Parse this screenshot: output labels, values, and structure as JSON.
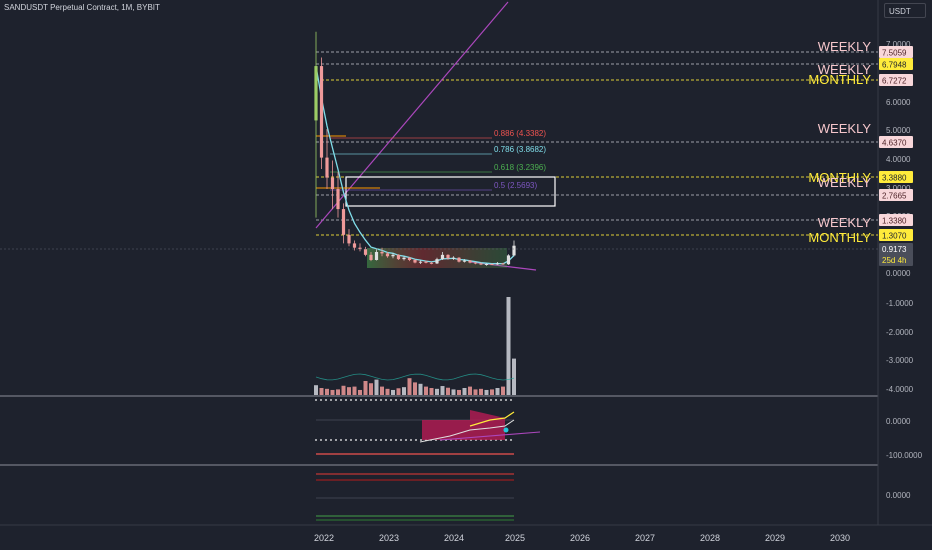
{
  "header": {
    "symbol_title": "SANDUSDT Perpetual Contract, 1M, BYBIT",
    "currency_button": "USDT"
  },
  "colors": {
    "background": "#1e222d",
    "weekly_text": "#f5c6cb",
    "monthly_text": "#ffeb3b",
    "ema_line": "#80deea",
    "trendline": "#ab47bc",
    "bull": "#26a69a",
    "bear": "#ef5350",
    "volume_up": "#d1d4dc",
    "volume_down": "#ef9a9a"
  },
  "chart_data": {
    "type": "candlestick",
    "x_axis_labels": [
      "2022",
      "2023",
      "2024",
      "2025",
      "2026",
      "2027",
      "2028",
      "2029",
      "2030"
    ],
    "price_axis_labels": [
      "7.0000",
      "6.0000",
      "5.0000",
      "4.0000",
      "3.0000",
      "2.0000",
      "0.0000",
      "-1.0000",
      "-2.0000",
      "-3.0000",
      "-4.0000"
    ],
    "pane2_axis_labels": [
      "0.0000",
      "-100.0000"
    ],
    "pane3_axis_labels": [
      "0.0000"
    ],
    "levels": [
      {
        "value": 7.5059,
        "label": "WEEKLY",
        "label_color": "#f5c6cb",
        "tag_bg": "#f8d7da",
        "tag_fg": "#4a1f24",
        "line_color": "#b2b5be"
      },
      {
        "value": 6.7948,
        "label": "WEEKLY",
        "label_color": "#f5c6cb",
        "tag_bg": "#ffeb3b",
        "tag_fg": "#1e222d",
        "line_color": "#b2b5be"
      },
      {
        "value": 6.7272,
        "label": "MONTHLY",
        "label_color": "#ffeb3b",
        "tag_bg": "#f8d7da",
        "tag_fg": "#4a1f24",
        "line_color": "#ffeb3b"
      },
      {
        "value": 4.637,
        "label": "WEEKLY",
        "label_color": "#f5c6cb",
        "tag_bg": "#f8d7da",
        "tag_fg": "#4a1f24",
        "line_color": "#b2b5be"
      },
      {
        "value": 3.388,
        "label": "MONTHLY",
        "label_color": "#ffeb3b",
        "tag_bg": "#ffeb3b",
        "tag_fg": "#1e222d",
        "line_color": "#ffeb3b"
      },
      {
        "value": 2.7665,
        "label": "WEEKLY",
        "label_color": "#f5c6cb",
        "tag_bg": "#f8d7da",
        "tag_fg": "#4a1f24",
        "line_color": "#b2b5be"
      },
      {
        "value": 1.338,
        "label": "WEEKLY",
        "label_color": "#f5c6cb",
        "tag_bg": "#f8d7da",
        "tag_fg": "#4a1f24",
        "line_color": "#b2b5be"
      },
      {
        "value": 1.307,
        "label": "MONTHLY",
        "label_color": "#ffeb3b",
        "tag_bg": "#ffeb3b",
        "tag_fg": "#1e222d",
        "line_color": "#ffeb3b"
      }
    ],
    "current_price": {
      "value": 0.9173,
      "countdown": "25d 4h"
    },
    "fib_levels": [
      {
        "text": "0.886 (4.3382)",
        "value": 4.3382,
        "color": "#ef5350"
      },
      {
        "text": "0.786 (3.8682)",
        "value": 3.8682,
        "color": "#80deea"
      },
      {
        "text": "0.618 (3.2396)",
        "value": 3.2396,
        "color": "#4caf50"
      },
      {
        "text": "0.5 (2.5693)",
        "value": 2.5693,
        "color": "#7e57c2"
      }
    ],
    "candles": [
      {
        "o": 5.3,
        "h": 8.4,
        "l": 1.9,
        "c": 7.2
      },
      {
        "o": 7.2,
        "h": 7.5,
        "l": 3.6,
        "c": 4.0
      },
      {
        "o": 4.0,
        "h": 5.0,
        "l": 2.9,
        "c": 3.3
      },
      {
        "o": 3.3,
        "h": 3.9,
        "l": 2.2,
        "c": 2.9
      },
      {
        "o": 2.9,
        "h": 3.5,
        "l": 1.9,
        "c": 2.2
      },
      {
        "o": 2.2,
        "h": 2.4,
        "l": 1.0,
        "c": 1.3
      },
      {
        "o": 1.3,
        "h": 1.5,
        "l": 0.9,
        "c": 1.0
      },
      {
        "o": 1.0,
        "h": 1.1,
        "l": 0.75,
        "c": 0.85
      },
      {
        "o": 0.85,
        "h": 1.0,
        "l": 0.72,
        "c": 0.8
      },
      {
        "o": 0.8,
        "h": 0.88,
        "l": 0.55,
        "c": 0.6
      },
      {
        "o": 0.6,
        "h": 0.7,
        "l": 0.38,
        "c": 0.42
      },
      {
        "o": 0.42,
        "h": 0.8,
        "l": 0.4,
        "c": 0.7
      },
      {
        "o": 0.7,
        "h": 0.85,
        "l": 0.55,
        "c": 0.65
      },
      {
        "o": 0.65,
        "h": 0.7,
        "l": 0.5,
        "c": 0.55
      },
      {
        "o": 0.55,
        "h": 0.66,
        "l": 0.48,
        "c": 0.6
      },
      {
        "o": 0.6,
        "h": 0.62,
        "l": 0.42,
        "c": 0.45
      },
      {
        "o": 0.45,
        "h": 0.55,
        "l": 0.4,
        "c": 0.5
      },
      {
        "o": 0.5,
        "h": 0.52,
        "l": 0.38,
        "c": 0.42
      },
      {
        "o": 0.42,
        "h": 0.45,
        "l": 0.3,
        "c": 0.33
      },
      {
        "o": 0.33,
        "h": 0.4,
        "l": 0.28,
        "c": 0.36
      },
      {
        "o": 0.36,
        "h": 0.4,
        "l": 0.3,
        "c": 0.32
      },
      {
        "o": 0.32,
        "h": 0.35,
        "l": 0.27,
        "c": 0.3
      },
      {
        "o": 0.3,
        "h": 0.5,
        "l": 0.28,
        "c": 0.45
      },
      {
        "o": 0.45,
        "h": 0.7,
        "l": 0.42,
        "c": 0.6
      },
      {
        "o": 0.6,
        "h": 0.62,
        "l": 0.43,
        "c": 0.48
      },
      {
        "o": 0.48,
        "h": 0.55,
        "l": 0.42,
        "c": 0.5
      },
      {
        "o": 0.5,
        "h": 0.52,
        "l": 0.33,
        "c": 0.36
      },
      {
        "o": 0.36,
        "h": 0.45,
        "l": 0.33,
        "c": 0.4
      },
      {
        "o": 0.4,
        "h": 0.42,
        "l": 0.3,
        "c": 0.33
      },
      {
        "o": 0.33,
        "h": 0.36,
        "l": 0.27,
        "c": 0.3
      },
      {
        "o": 0.3,
        "h": 0.33,
        "l": 0.24,
        "c": 0.26
      },
      {
        "o": 0.26,
        "h": 0.3,
        "l": 0.22,
        "c": 0.28
      },
      {
        "o": 0.28,
        "h": 0.3,
        "l": 0.25,
        "c": 0.27
      },
      {
        "o": 0.27,
        "h": 0.35,
        "l": 0.25,
        "c": 0.3
      },
      {
        "o": 0.3,
        "h": 0.32,
        "l": 0.25,
        "c": 0.27
      },
      {
        "o": 0.27,
        "h": 0.62,
        "l": 0.25,
        "c": 0.58
      },
      {
        "o": 0.58,
        "h": 1.1,
        "l": 0.55,
        "c": 0.92
      }
    ],
    "volumes": [
      0.35,
      0.25,
      0.22,
      0.18,
      0.2,
      0.33,
      0.28,
      0.3,
      0.18,
      0.5,
      0.42,
      0.55,
      0.3,
      0.22,
      0.18,
      0.24,
      0.28,
      0.6,
      0.45,
      0.4,
      0.3,
      0.25,
      0.22,
      0.32,
      0.26,
      0.2,
      0.18,
      0.25,
      0.3,
      0.2,
      0.22,
      0.18,
      0.2,
      0.25,
      0.3,
      3.5,
      1.3
    ]
  }
}
